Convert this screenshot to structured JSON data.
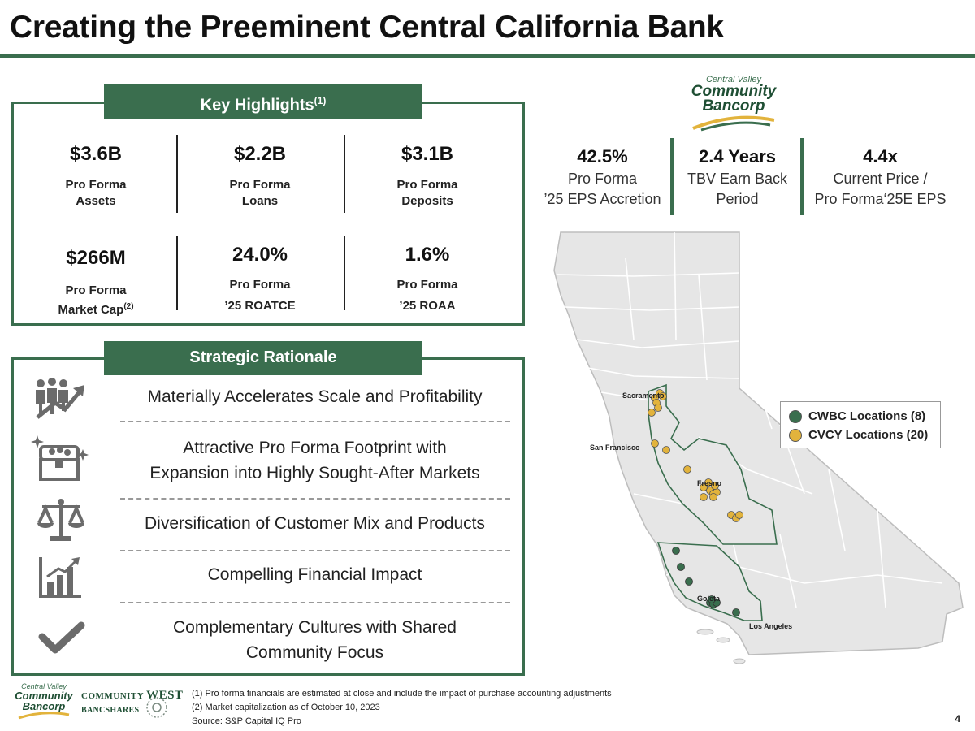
{
  "page": {
    "title": "Creating the Preeminent Central California Bank",
    "page_number": "4"
  },
  "key_highlights": {
    "tab_label": "Key Highlights",
    "tab_sup": "(1)",
    "metrics": [
      {
        "value": "$3.6B",
        "line1": "Pro Forma",
        "line2": "Assets"
      },
      {
        "value": "$2.2B",
        "line1": "Pro Forma",
        "line2": "Loans"
      },
      {
        "value": "$3.1B",
        "line1": "Pro Forma",
        "line2": "Deposits"
      },
      {
        "value": "$266M",
        "line1": "Pro Forma",
        "line2": "Market Cap",
        "sup": "(2)"
      },
      {
        "value": "24.0%",
        "line1": "Pro Forma",
        "line2": "’25 ROATCE"
      },
      {
        "value": "1.6%",
        "line1": "Pro Forma",
        "line2": "’25 ROAA"
      }
    ]
  },
  "top_stats": [
    {
      "value": "42.5%",
      "line1": "Pro Forma",
      "line2": "’25 EPS Accretion"
    },
    {
      "value": "2.4 Years",
      "line1": "TBV Earn Back",
      "line2": "Period"
    },
    {
      "value": "4.4x",
      "line1": "Current Price /",
      "line2": "Pro Forma‘25E EPS"
    }
  ],
  "logo": {
    "line1": "Central Valley",
    "line2": "Community",
    "line3": "Bancorp"
  },
  "strategic_rationale": {
    "tab_label": "Strategic Rationale",
    "items": [
      {
        "line1": "Materially Accelerates Scale and Profitability",
        "line2": "",
        "icon": "people-growth-icon"
      },
      {
        "line1": "Attractive Pro Forma Footprint with",
        "line2": "Expansion into Highly Sought-After Markets",
        "icon": "treasure-chest-icon"
      },
      {
        "line1": "Diversification of Customer Mix and Products",
        "line2": "",
        "icon": "balance-scale-icon"
      },
      {
        "line1": "Compelling Financial Impact",
        "line2": "",
        "icon": "bar-chart-icon"
      },
      {
        "line1": "Complementary Cultures with Shared",
        "line2": "Community Focus",
        "icon": "checkmark-icon"
      }
    ]
  },
  "map": {
    "cities": [
      "Sacramento",
      "San Francisco",
      "Fresno",
      "Goleta",
      "Los Angeles"
    ],
    "legend": [
      {
        "label": "CWBC Locations (8)",
        "color": "#3a6e4e"
      },
      {
        "label": "CVCY Locations (20)",
        "color": "#e2b33c"
      }
    ],
    "colors": {
      "state_fill": "#e6e6e6",
      "county_line": "#ffffff",
      "outline": "#3a6e4e"
    }
  },
  "footer": {
    "notes": [
      "(1)  Pro forma financials are estimated at close and include the impact of purchase accounting adjustments",
      "(2) Market capitalization as of October 10, 2023",
      "Source: S&P Capital IQ Pro"
    ],
    "cvc_logo": {
      "line1": "Central Valley",
      "line2": "Community",
      "line3": "Bancorp"
    },
    "cw_logo": {
      "line1": "COMMUNITY",
      "line2": "WEST",
      "line3": "BANCSHARES"
    }
  }
}
